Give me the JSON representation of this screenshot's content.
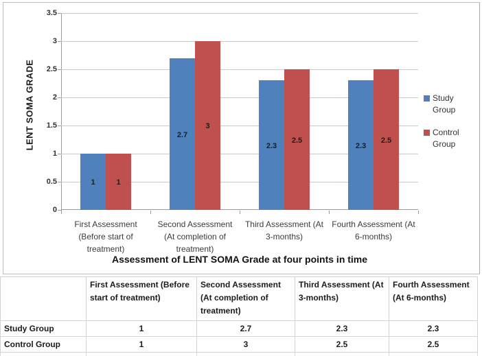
{
  "chart_data": {
    "type": "bar",
    "title": "Assessment of LENT SOMA Grade at four points in time",
    "xlabel": "Assessment of LENT SOMA Grade at four points in time",
    "ylabel": "LENT SOMA GRADE",
    "ylim": [
      0,
      3.5
    ],
    "ytick_labels": [
      "3.5",
      "3",
      "2.5",
      "2",
      "1.5",
      "1",
      "0.5",
      "0"
    ],
    "grid": true,
    "legend_position": "right",
    "categories": [
      "First Assessment (Before start of treatment)",
      "Second Assessment (At completion of treatment)",
      "Third Assessment (At 3-months)",
      "Fourth Assessment (At 6-months)"
    ],
    "series": [
      {
        "name": "Study Group",
        "color": "#4F81BD",
        "values": [
          1,
          2.7,
          2.3,
          2.3
        ],
        "labels": [
          "1",
          "2.7",
          "2.3",
          "2.3"
        ]
      },
      {
        "name": "Control Group",
        "color": "#C0504D",
        "values": [
          1,
          3,
          2.5,
          2.5
        ],
        "labels": [
          "1",
          "3",
          "2.5",
          "2.5"
        ]
      }
    ]
  },
  "legend": {
    "items": [
      {
        "label": "Study Group",
        "color": "#4F81BD"
      },
      {
        "label": "Control Group",
        "color": "#C0504D"
      }
    ]
  },
  "table": {
    "corner": "",
    "columns": [
      "First Assessment (Before start of treatment)",
      "Second Assessment (At completion of treatment)",
      "Third Assessment (At 3-months)",
      "Fourth Assessment (At 6-months)"
    ],
    "rows": [
      {
        "label": "Study Group",
        "values": [
          "1",
          "2.7",
          "2.3",
          "2.3"
        ]
      },
      {
        "label": "Control Group",
        "values": [
          "1",
          "3",
          "2.5",
          "2.5"
        ]
      }
    ]
  }
}
